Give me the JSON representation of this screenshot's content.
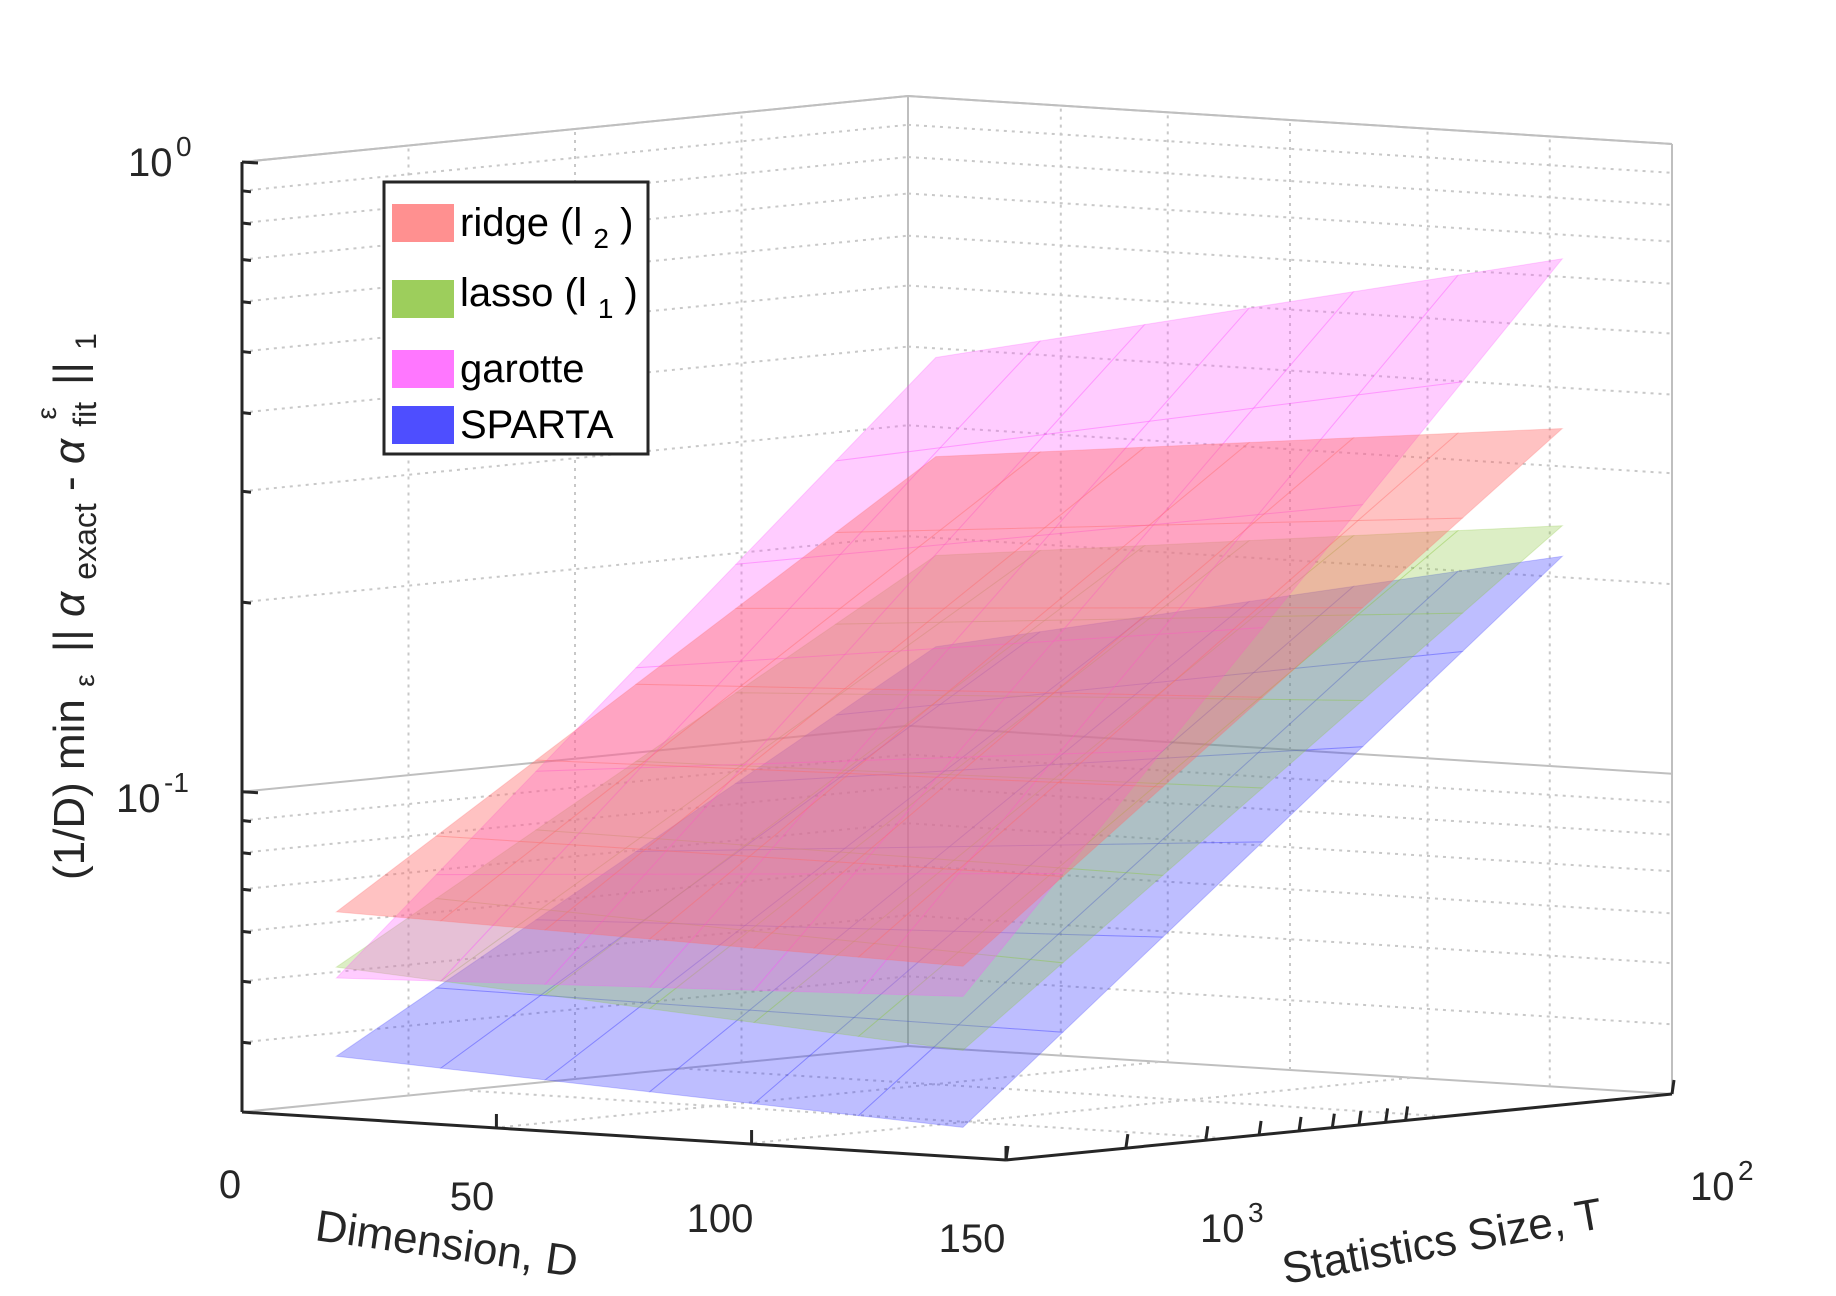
{
  "chart_data": {
    "type": "surface3d",
    "zlabel": "(1/D) min_ε ||α_exact - αᵉ_fit||₁",
    "zlabel_parts": {
      "pre": "(1/D) min",
      "eps": "ε",
      "bars1": "||",
      "alpha": "α",
      "exact": "exact",
      "minus": "-",
      "alpha2": "α",
      "fit": "fit",
      "fit_sup": "ε",
      "bars2": "||",
      "one": "1"
    },
    "xlabel": "Dimension, D",
    "ylabel": "Statistics Size, T",
    "z_scale": "log",
    "z_ticks": [
      {
        "base": "10",
        "exp": "0"
      },
      {
        "base": "10",
        "exp": "-1"
      }
    ],
    "x_ticks": [
      "0",
      "50",
      "100",
      "150"
    ],
    "y_ticks": [
      {
        "base": "10",
        "exp": "2"
      },
      {
        "base": "10",
        "exp": "3"
      }
    ],
    "grid": true,
    "legend_position": "top-left",
    "series": [
      {
        "name": "ridge (l₂)",
        "label": "ridge (l",
        "sub": "2",
        "close": ")",
        "color": "#ff6b6b",
        "corner_values": {
          "D_small_T_large": 0.06,
          "D_large_T_large": 0.055,
          "D_large_T_small": 0.4,
          "D_small_T_small": 0.29
        }
      },
      {
        "name": "lasso (l₁)",
        "label": "lasso (l",
        "sub": "1",
        "close": ")",
        "color": "#8cc63f",
        "corner_values": {
          "D_small_T_large": 0.05,
          "D_large_T_large": 0.04,
          "D_large_T_small": 0.28,
          "D_small_T_small": 0.2
        }
      },
      {
        "name": "garotte",
        "label": "garotte",
        "sub": "",
        "close": "",
        "color": "#ff55ff",
        "corner_values": {
          "D_small_T_large": 0.045,
          "D_large_T_large": 0.048,
          "D_large_T_small": 0.8,
          "D_small_T_small": 0.42
        }
      },
      {
        "name": "SPARTA",
        "label": "SPARTA",
        "sub": "",
        "close": "",
        "color": "#3b3bff",
        "corner_values": {
          "D_small_T_large": 0.036,
          "D_large_T_large": 0.03,
          "D_large_T_small": 0.26,
          "D_small_T_small": 0.14
        }
      }
    ]
  }
}
